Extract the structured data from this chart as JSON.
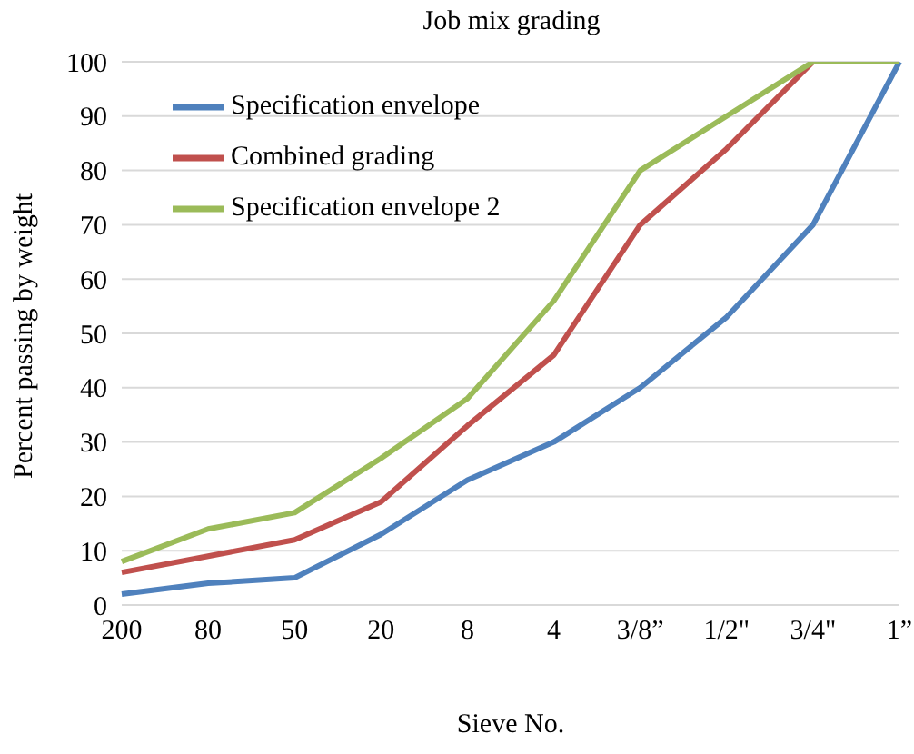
{
  "chart_data": {
    "type": "line",
    "title": "Job mix grading",
    "xlabel": "Sieve No.",
    "ylabel": "Percent passing by weight",
    "categories": [
      "200",
      "80",
      "50",
      "20",
      "8",
      "4",
      "3/8”",
      "1/2\"",
      "3/4\"",
      "1”"
    ],
    "series": [
      {
        "name": "Specification envelope",
        "color": "#4f81bd",
        "values": [
          2,
          4,
          5,
          13,
          23,
          30,
          40,
          53,
          70,
          100
        ]
      },
      {
        "name": "Combined grading",
        "color": "#c0504d",
        "values": [
          6,
          9,
          12,
          19,
          33,
          46,
          70,
          84,
          100,
          null
        ]
      },
      {
        "name": "Specification envelope 2",
        "color": "#9bbb59",
        "values": [
          8,
          14,
          17,
          27,
          38,
          56,
          80,
          90,
          100,
          100
        ]
      }
    ],
    "ylim": [
      0,
      100
    ],
    "yticks": [
      0,
      10,
      20,
      30,
      40,
      50,
      60,
      70,
      80,
      90,
      100
    ],
    "grid": "y",
    "legend": "top left",
    "marker": "none",
    "line_style": "solid"
  }
}
